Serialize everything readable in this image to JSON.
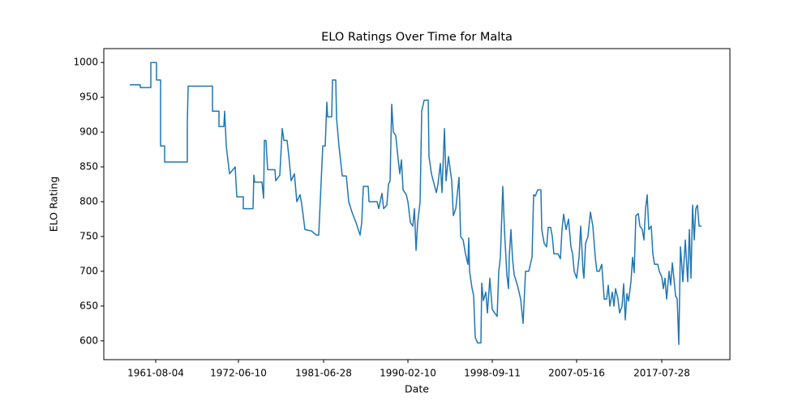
{
  "chart_data": {
    "type": "line",
    "title": "ELO Ratings Over Time for Malta",
    "x_label": "Date",
    "y_label": "ELO Rating",
    "color": "#1f77b4",
    "x": [
      68,
      81,
      81,
      94,
      94,
      101,
      101,
      106,
      106,
      111,
      111,
      139,
      139,
      140,
      170,
      170,
      178,
      178,
      184,
      185,
      187,
      191,
      198,
      200,
      208,
      208,
      220,
      221,
      222,
      231,
      233,
      234,
      236,
      238,
      247,
      248,
      253,
      256,
      258,
      262,
      264,
      267,
      271,
      274,
      278,
      280,
      284,
      292,
      298,
      301,
      306,
      309,
      311,
      312,
      317,
      318,
      322,
      323,
      326,
      330,
      335,
      338,
      342,
      347,
      352,
      354,
      356,
      362,
      363,
      373,
      375,
      379,
      381,
      385,
      387,
      389,
      391,
      393,
      396,
      399,
      401,
      403,
      405,
      409,
      411,
      414,
      417,
      419,
      421,
      423,
      426,
      428,
      431,
      436,
      437,
      440,
      444,
      446,
      448,
      451,
      453,
      456,
      458,
      461,
      465,
      467,
      470,
      474,
      476,
      479,
      482,
      485,
      486,
      487,
      490,
      492,
      494,
      497,
      501,
      502,
      504,
      507,
      509,
      512,
      515,
      518,
      521,
      523,
      525,
      528,
      530,
      533,
      535,
      536,
      538,
      540,
      542,
      546,
      550,
      553,
      556,
      560,
      564,
      566,
      568,
      571,
      575,
      576,
      579,
      582,
      584,
      587,
      589,
      591,
      596,
      599,
      601,
      603,
      606,
      609,
      612,
      614,
      616,
      619,
      622,
      624,
      627,
      628,
      630,
      633,
      636,
      639,
      642,
      644,
      647,
      650,
      653,
      656,
      658,
      660,
      663,
      665,
      667,
      670,
      672,
      675,
      677,
      679,
      681,
      683,
      686,
      688,
      690,
      692,
      695,
      697,
      700,
      702,
      704,
      706,
      708,
      711,
      713,
      715,
      719,
      721,
      724,
      726,
      728,
      730,
      733,
      735,
      737,
      739,
      741,
      743,
      745,
      747,
      748,
      750,
      753,
      756,
      758,
      760,
      762,
      764,
      766,
      768,
      770,
      773
    ],
    "values": [
      968,
      968,
      964,
      964,
      1000,
      1000,
      975,
      975,
      880,
      880,
      857,
      857,
      915,
      966,
      966,
      930,
      930,
      908,
      908,
      930,
      880,
      840,
      850,
      807,
      807,
      790,
      790,
      838,
      828,
      828,
      805,
      888,
      888,
      846,
      846,
      830,
      838,
      905,
      888,
      888,
      867,
      830,
      840,
      800,
      810,
      797,
      760,
      758,
      752,
      752,
      880,
      880,
      943,
      922,
      922,
      975,
      975,
      920,
      880,
      837,
      837,
      800,
      785,
      770,
      752,
      770,
      822,
      822,
      800,
      800,
      790,
      812,
      790,
      795,
      825,
      830,
      940,
      900,
      895,
      860,
      840,
      860,
      817,
      810,
      800,
      770,
      765,
      790,
      730,
      770,
      800,
      930,
      946,
      946,
      865,
      840,
      822,
      813,
      825,
      855,
      813,
      905,
      830,
      865,
      830,
      780,
      790,
      835,
      750,
      745,
      725,
      710,
      748,
      700,
      676,
      665,
      605,
      597,
      597,
      683,
      658,
      670,
      640,
      690,
      645,
      640,
      635,
      700,
      720,
      822,
      760,
      695,
      675,
      722,
      760,
      718,
      695,
      680,
      660,
      625,
      700,
      700,
      720,
      810,
      808,
      817,
      817,
      760,
      740,
      735,
      763,
      763,
      750,
      725,
      725,
      718,
      760,
      782,
      760,
      775,
      735,
      725,
      700,
      690,
      720,
      765,
      700,
      690,
      740,
      750,
      785,
      765,
      720,
      700,
      700,
      710,
      660,
      660,
      680,
      650,
      670,
      650,
      675,
      660,
      640,
      650,
      682,
      630,
      668,
      657,
      685,
      720,
      698,
      780,
      783,
      765,
      760,
      745,
      790,
      810,
      760,
      765,
      725,
      710,
      710,
      700,
      692,
      675,
      690,
      660,
      700,
      680,
      712,
      690,
      665,
      660,
      595,
      735,
      720,
      685,
      745,
      685,
      760,
      690,
      795,
      745,
      790,
      795,
      765,
      765
    ],
    "xlim": [
      36,
      808
    ],
    "ylim": [
      573,
      1020
    ],
    "xticks": [
      {
        "value": 100,
        "label": "1961-08-04"
      },
      {
        "value": 202,
        "label": "1972-06-10"
      },
      {
        "value": 307,
        "label": "1981-06-28"
      },
      {
        "value": 411,
        "label": "1990-02-10"
      },
      {
        "value": 515,
        "label": "1998-09-11"
      },
      {
        "value": 619,
        "label": "2007-05-16"
      },
      {
        "value": 724,
        "label": "2017-07-28"
      }
    ],
    "yticks": [
      600,
      650,
      700,
      750,
      800,
      850,
      900,
      950,
      1000
    ]
  }
}
